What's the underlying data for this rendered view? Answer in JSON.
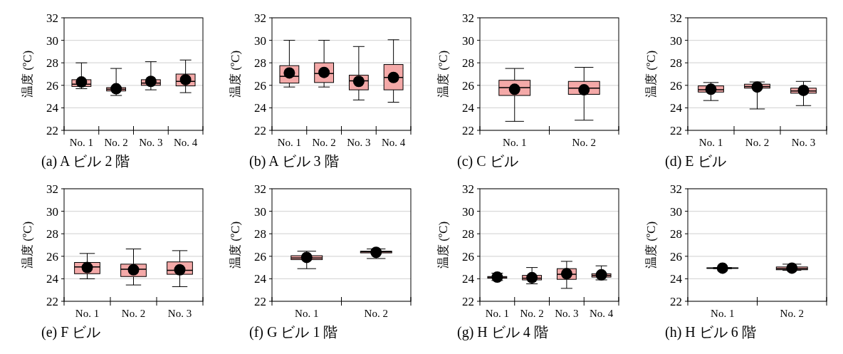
{
  "chart_data": [
    {
      "type": "box",
      "title": "(a) A ビル 2 階",
      "ylabel": "温度 (ºC)",
      "categories": [
        "No. 1",
        "No. 2",
        "No. 3",
        "No. 4"
      ],
      "color": "#f4a9a8",
      "ylim": [
        22,
        32
      ],
      "yticks": [
        22,
        24,
        26,
        28,
        30,
        32
      ],
      "grid": "y",
      "marker": "circle",
      "boxes": [
        {
          "low": 25.7,
          "q1": 25.9,
          "median": 26.1,
          "q3": 26.5,
          "high": 28.0,
          "mean": 26.3
        },
        {
          "low": 25.1,
          "q1": 25.5,
          "median": 25.65,
          "q3": 25.8,
          "high": 27.5,
          "mean": 25.7
        },
        {
          "low": 25.6,
          "q1": 26.0,
          "median": 26.2,
          "q3": 26.5,
          "high": 28.1,
          "mean": 26.35
        },
        {
          "low": 25.35,
          "q1": 25.95,
          "median": 26.35,
          "q3": 27.0,
          "high": 28.25,
          "mean": 26.5
        }
      ]
    },
    {
      "type": "box",
      "title": "(b) A ビル 3 階",
      "ylabel": "温度 (ºC)",
      "categories": [
        "No. 1",
        "No. 2",
        "No. 3",
        "No. 4"
      ],
      "color": "#f4a9a8",
      "ylim": [
        22,
        32
      ],
      "yticks": [
        22,
        24,
        26,
        28,
        30,
        32
      ],
      "grid": "y",
      "marker": "circle",
      "boxes": [
        {
          "low": 25.85,
          "q1": 26.2,
          "median": 26.8,
          "q3": 27.75,
          "high": 30.0,
          "mean": 27.1
        },
        {
          "low": 25.85,
          "q1": 26.25,
          "median": 27.05,
          "q3": 28.0,
          "high": 30.0,
          "mean": 27.15
        },
        {
          "low": 24.7,
          "q1": 25.6,
          "median": 26.4,
          "q3": 26.9,
          "high": 29.45,
          "mean": 26.35
        },
        {
          "low": 24.5,
          "q1": 25.6,
          "median": 26.7,
          "q3": 27.85,
          "high": 30.05,
          "mean": 26.7
        }
      ]
    },
    {
      "type": "box",
      "title": "(c) C ビル",
      "ylabel": "温度 (ºC)",
      "categories": [
        "No. 1",
        "No. 2"
      ],
      "color": "#f4a9a8",
      "ylim": [
        22,
        32
      ],
      "yticks": [
        22,
        24,
        26,
        28,
        30,
        32
      ],
      "grid": "y",
      "marker": "circle",
      "boxes": [
        {
          "low": 22.8,
          "q1": 25.1,
          "median": 25.8,
          "q3": 26.45,
          "high": 27.5,
          "mean": 25.65
        },
        {
          "low": 22.9,
          "q1": 25.2,
          "median": 25.75,
          "q3": 26.35,
          "high": 27.6,
          "mean": 25.6
        }
      ]
    },
    {
      "type": "box",
      "title": "(d) E ビル",
      "ylabel": "温度 (ºC)",
      "categories": [
        "No. 1",
        "No. 2",
        "No. 3"
      ],
      "color": "#f4a9a8",
      "ylim": [
        22,
        32
      ],
      "yticks": [
        22,
        24,
        26,
        28,
        30,
        32
      ],
      "grid": "y",
      "marker": "circle",
      "boxes": [
        {
          "low": 24.65,
          "q1": 25.4,
          "median": 25.6,
          "q3": 25.95,
          "high": 26.25,
          "mean": 25.65
        },
        {
          "low": 23.9,
          "q1": 25.75,
          "median": 25.9,
          "q3": 26.1,
          "high": 26.3,
          "mean": 25.85
        },
        {
          "low": 24.2,
          "q1": 25.3,
          "median": 25.5,
          "q3": 25.75,
          "high": 26.35,
          "mean": 25.55
        }
      ]
    },
    {
      "type": "box",
      "title": "(e) F ビル",
      "ylabel": "温度 (ºC)",
      "categories": [
        "No. 1",
        "No. 2",
        "No. 3"
      ],
      "color": "#f4a9a8",
      "ylim": [
        22,
        32
      ],
      "yticks": [
        22,
        24,
        26,
        28,
        30,
        32
      ],
      "grid": "y",
      "marker": "circle",
      "boxes": [
        {
          "low": 24.0,
          "q1": 24.45,
          "median": 25.05,
          "q3": 25.45,
          "high": 26.25,
          "mean": 25.0
        },
        {
          "low": 23.45,
          "q1": 24.2,
          "median": 24.85,
          "q3": 25.3,
          "high": 26.65,
          "mean": 24.8
        },
        {
          "low": 23.3,
          "q1": 24.4,
          "median": 24.75,
          "q3": 25.5,
          "high": 26.5,
          "mean": 24.8
        }
      ]
    },
    {
      "type": "box",
      "title": "(f) G ビル 1 階",
      "ylabel": "温度 (ºC)",
      "categories": [
        "No. 1",
        "No. 2"
      ],
      "color": "#f4a9a8",
      "ylim": [
        22,
        32
      ],
      "yticks": [
        22,
        24,
        26,
        28,
        30,
        32
      ],
      "grid": "y",
      "marker": "circle",
      "boxes": [
        {
          "low": 24.9,
          "q1": 25.7,
          "median": 25.85,
          "q3": 26.05,
          "high": 26.45,
          "mean": 25.9
        },
        {
          "low": 25.8,
          "q1": 26.3,
          "median": 26.4,
          "q3": 26.45,
          "high": 26.65,
          "mean": 26.35
        }
      ]
    },
    {
      "type": "box",
      "title": "(g) H ビル 4 階",
      "ylabel": "温度 (ºC)",
      "categories": [
        "No. 1",
        "No. 2",
        "No. 3",
        "No. 4"
      ],
      "color": "#f4a9a8",
      "ylim": [
        22,
        32
      ],
      "yticks": [
        22,
        24,
        26,
        28,
        30,
        32
      ],
      "grid": "y",
      "marker": "circle",
      "boxes": [
        {
          "low": 23.85,
          "q1": 24.05,
          "median": 24.15,
          "q3": 24.2,
          "high": 24.5,
          "mean": 24.15
        },
        {
          "low": 23.55,
          "q1": 23.9,
          "median": 24.05,
          "q3": 24.3,
          "high": 25.0,
          "mean": 24.1
        },
        {
          "low": 23.15,
          "q1": 23.95,
          "median": 24.4,
          "q3": 24.9,
          "high": 25.55,
          "mean": 24.45
        },
        {
          "low": 23.9,
          "q1": 24.15,
          "median": 24.3,
          "q3": 24.45,
          "high": 25.15,
          "mean": 24.35
        }
      ]
    },
    {
      "type": "box",
      "title": "(h) H ビル 6 階",
      "ylabel": "温度 (ºC)",
      "categories": [
        "No. 1",
        "No. 2"
      ],
      "color": "#f4a9a8",
      "ylim": [
        22,
        32
      ],
      "yticks": [
        22,
        24,
        26,
        28,
        30,
        32
      ],
      "grid": "y",
      "marker": "circle",
      "boxes": [
        {
          "low": 24.9,
          "q1": 24.93,
          "median": 24.95,
          "q3": 24.97,
          "high": 25.0,
          "mean": 24.95
        },
        {
          "low": 24.75,
          "q1": 24.8,
          "median": 24.9,
          "q3": 25.05,
          "high": 25.3,
          "mean": 24.95
        }
      ]
    }
  ]
}
